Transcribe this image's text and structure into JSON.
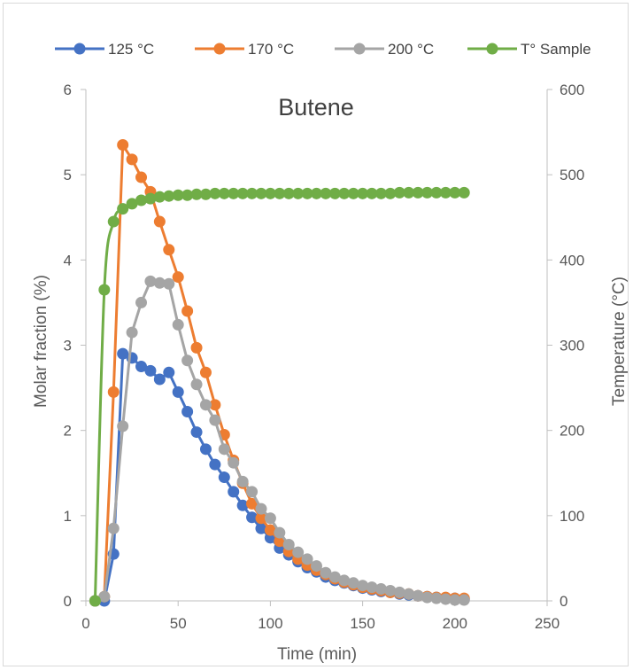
{
  "chart_data": {
    "type": "scatter-line",
    "title": "Butene",
    "xlabel": "Time (min)",
    "ylabel": "Molar fraction (%)",
    "y2label": "Temperature (°C)",
    "xlim": [
      0,
      250
    ],
    "ylim": [
      0,
      6
    ],
    "y2lim": [
      0,
      600
    ],
    "x_ticks": [
      0,
      50,
      100,
      150,
      200,
      250
    ],
    "y_ticks": [
      0,
      1,
      2,
      3,
      4,
      5,
      6
    ],
    "y2_ticks": [
      0,
      100,
      200,
      300,
      400,
      500,
      600
    ],
    "legend_position": "top",
    "series": [
      {
        "name": "125 °C",
        "color": "#4472c4",
        "axis": "left",
        "x": [
          5,
          10,
          15,
          20,
          25,
          30,
          35,
          40,
          45,
          50,
          55,
          60,
          65,
          70,
          75,
          80,
          85,
          90,
          95,
          100,
          105,
          110,
          115,
          120,
          125,
          130,
          135,
          140,
          145,
          150,
          155,
          160,
          165,
          170,
          175,
          180,
          185,
          190,
          195,
          200,
          205
        ],
        "y": [
          0,
          0.0,
          0.55,
          2.9,
          2.85,
          2.75,
          2.7,
          2.6,
          2.68,
          2.45,
          2.22,
          1.98,
          1.78,
          1.6,
          1.45,
          1.28,
          1.12,
          0.98,
          0.85,
          0.74,
          0.62,
          0.54,
          0.46,
          0.39,
          0.34,
          0.28,
          0.24,
          0.21,
          0.18,
          0.15,
          0.13,
          0.11,
          0.1,
          0.08,
          0.07,
          0.06,
          0.05,
          0.04,
          0.03,
          0.03,
          0.02
        ]
      },
      {
        "name": "170 °C",
        "color": "#ed7d31",
        "axis": "left",
        "x": [
          5,
          10,
          15,
          20,
          25,
          30,
          35,
          40,
          45,
          50,
          55,
          60,
          65,
          70,
          75,
          80,
          85,
          90,
          95,
          100,
          105,
          110,
          115,
          120,
          125,
          130,
          135,
          140,
          145,
          150,
          155,
          160,
          165,
          170,
          175,
          180,
          185,
          190,
          195,
          200,
          205
        ],
        "y": [
          0,
          0.05,
          2.45,
          5.35,
          5.18,
          4.97,
          4.8,
          4.45,
          4.12,
          3.8,
          3.4,
          2.97,
          2.68,
          2.3,
          1.95,
          1.65,
          1.38,
          1.14,
          0.97,
          0.83,
          0.7,
          0.58,
          0.49,
          0.42,
          0.36,
          0.31,
          0.26,
          0.22,
          0.19,
          0.16,
          0.14,
          0.12,
          0.1,
          0.09,
          0.08,
          0.06,
          0.05,
          0.04,
          0.04,
          0.03,
          0.03
        ]
      },
      {
        "name": "200 °C",
        "color": "#a5a5a5",
        "axis": "left",
        "x": [
          5,
          10,
          15,
          20,
          25,
          30,
          35,
          40,
          45,
          50,
          55,
          60,
          65,
          70,
          75,
          80,
          85,
          90,
          95,
          100,
          105,
          110,
          115,
          120,
          125,
          130,
          135,
          140,
          145,
          150,
          155,
          160,
          165,
          170,
          175,
          180,
          185,
          190,
          195,
          200,
          205
        ],
        "y": [
          0,
          0.05,
          0.85,
          2.05,
          3.15,
          3.5,
          3.75,
          3.73,
          3.72,
          3.24,
          2.82,
          2.54,
          2.3,
          2.12,
          1.78,
          1.62,
          1.4,
          1.28,
          1.08,
          0.97,
          0.8,
          0.66,
          0.57,
          0.49,
          0.41,
          0.33,
          0.28,
          0.24,
          0.21,
          0.18,
          0.16,
          0.14,
          0.12,
          0.1,
          0.08,
          0.06,
          0.04,
          0.03,
          0.02,
          0.01,
          0.01
        ]
      },
      {
        "name": "T° Sample",
        "color": "#70ad47",
        "axis": "right",
        "smooth": true,
        "x": [
          5,
          10,
          15,
          20,
          25,
          30,
          35,
          40,
          45,
          50,
          55,
          60,
          65,
          70,
          75,
          80,
          85,
          90,
          95,
          100,
          105,
          110,
          115,
          120,
          125,
          130,
          135,
          140,
          145,
          150,
          155,
          160,
          165,
          170,
          175,
          180,
          185,
          190,
          195,
          200,
          205
        ],
        "y": [
          0,
          365,
          445,
          460,
          466,
          470,
          472,
          474,
          475,
          476,
          476,
          477,
          477,
          478,
          478,
          478,
          478,
          478,
          478,
          478,
          478,
          478,
          478,
          478,
          478,
          478,
          478,
          478,
          478,
          478,
          478,
          478,
          478,
          479,
          479,
          479,
          479,
          479,
          479,
          479,
          479
        ]
      }
    ]
  }
}
